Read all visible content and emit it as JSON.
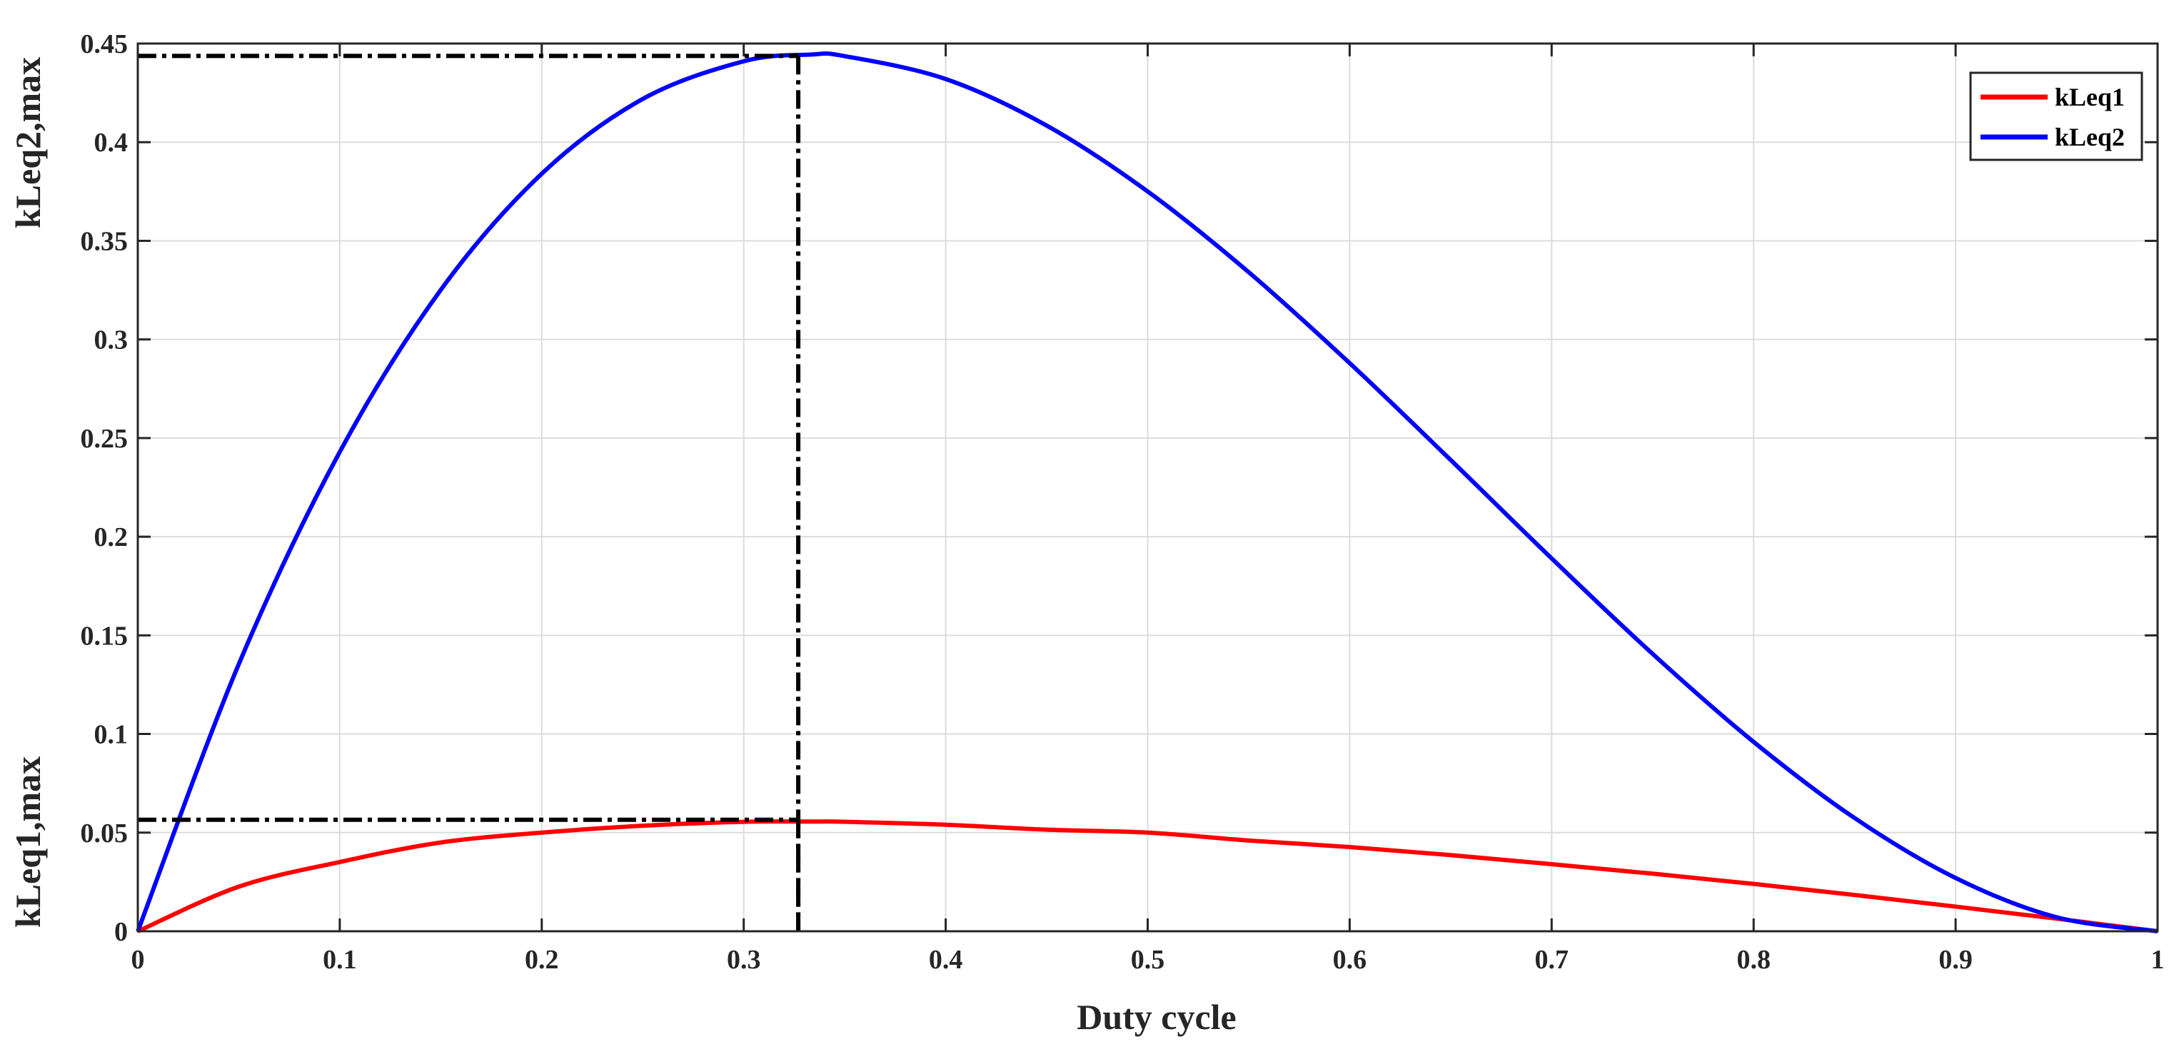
{
  "chart_data": {
    "type": "line",
    "title": "",
    "xlabel": "Duty cycle",
    "ylabel_upper": "kLeq2,max",
    "ylabel_lower": "kLeq1,max",
    "xlim": [
      0,
      1
    ],
    "ylim": [
      0,
      0.45
    ],
    "x_ticks": [
      "0",
      "0.1",
      "0.2",
      "0.3",
      "0.4",
      "0.5",
      "0.6",
      "0.7",
      "0.8",
      "0.9",
      "1"
    ],
    "y_ticks": [
      "0",
      "0.05",
      "0.1",
      "0.15",
      "0.2",
      "0.25",
      "0.3",
      "0.35",
      "0.4",
      "0.45"
    ],
    "grid": true,
    "legend_position": "top-right",
    "x": [
      0,
      0.05,
      0.1,
      0.15,
      0.2,
      0.25,
      0.3,
      0.333,
      0.35,
      0.4,
      0.45,
      0.5,
      0.55,
      0.6,
      0.65,
      0.7,
      0.75,
      0.8,
      0.85,
      0.9,
      0.95,
      1
    ],
    "series": [
      {
        "name": "kLeq1",
        "color": "#ff0000",
        "values": [
          0,
          0.0226,
          0.0351,
          0.045,
          0.05,
          0.0535,
          0.0555,
          0.0556,
          0.0555,
          0.054,
          0.0515,
          0.05,
          0.046,
          0.0427,
          0.0386,
          0.034,
          0.0292,
          0.024,
          0.0184,
          0.0125,
          0.0064,
          0
        ]
      },
      {
        "name": "kLeq2",
        "color": "#0000ff",
        "values": [
          0,
          0.1354,
          0.243,
          0.3251,
          0.384,
          0.4219,
          0.441,
          0.4444,
          0.4436,
          0.432,
          0.4084,
          0.375,
          0.3341,
          0.288,
          0.2389,
          0.189,
          0.1406,
          0.096,
          0.0574,
          0.027,
          0.0071,
          0
        ]
      }
    ],
    "annotations": [
      {
        "type": "max-marker",
        "x": 0.327,
        "y": 0.4437,
        "color": "#000000",
        "style": "dash-dot"
      },
      {
        "type": "max-marker",
        "x": 0.327,
        "y": 0.0565,
        "color": "#000000",
        "style": "dash-dot"
      }
    ]
  }
}
